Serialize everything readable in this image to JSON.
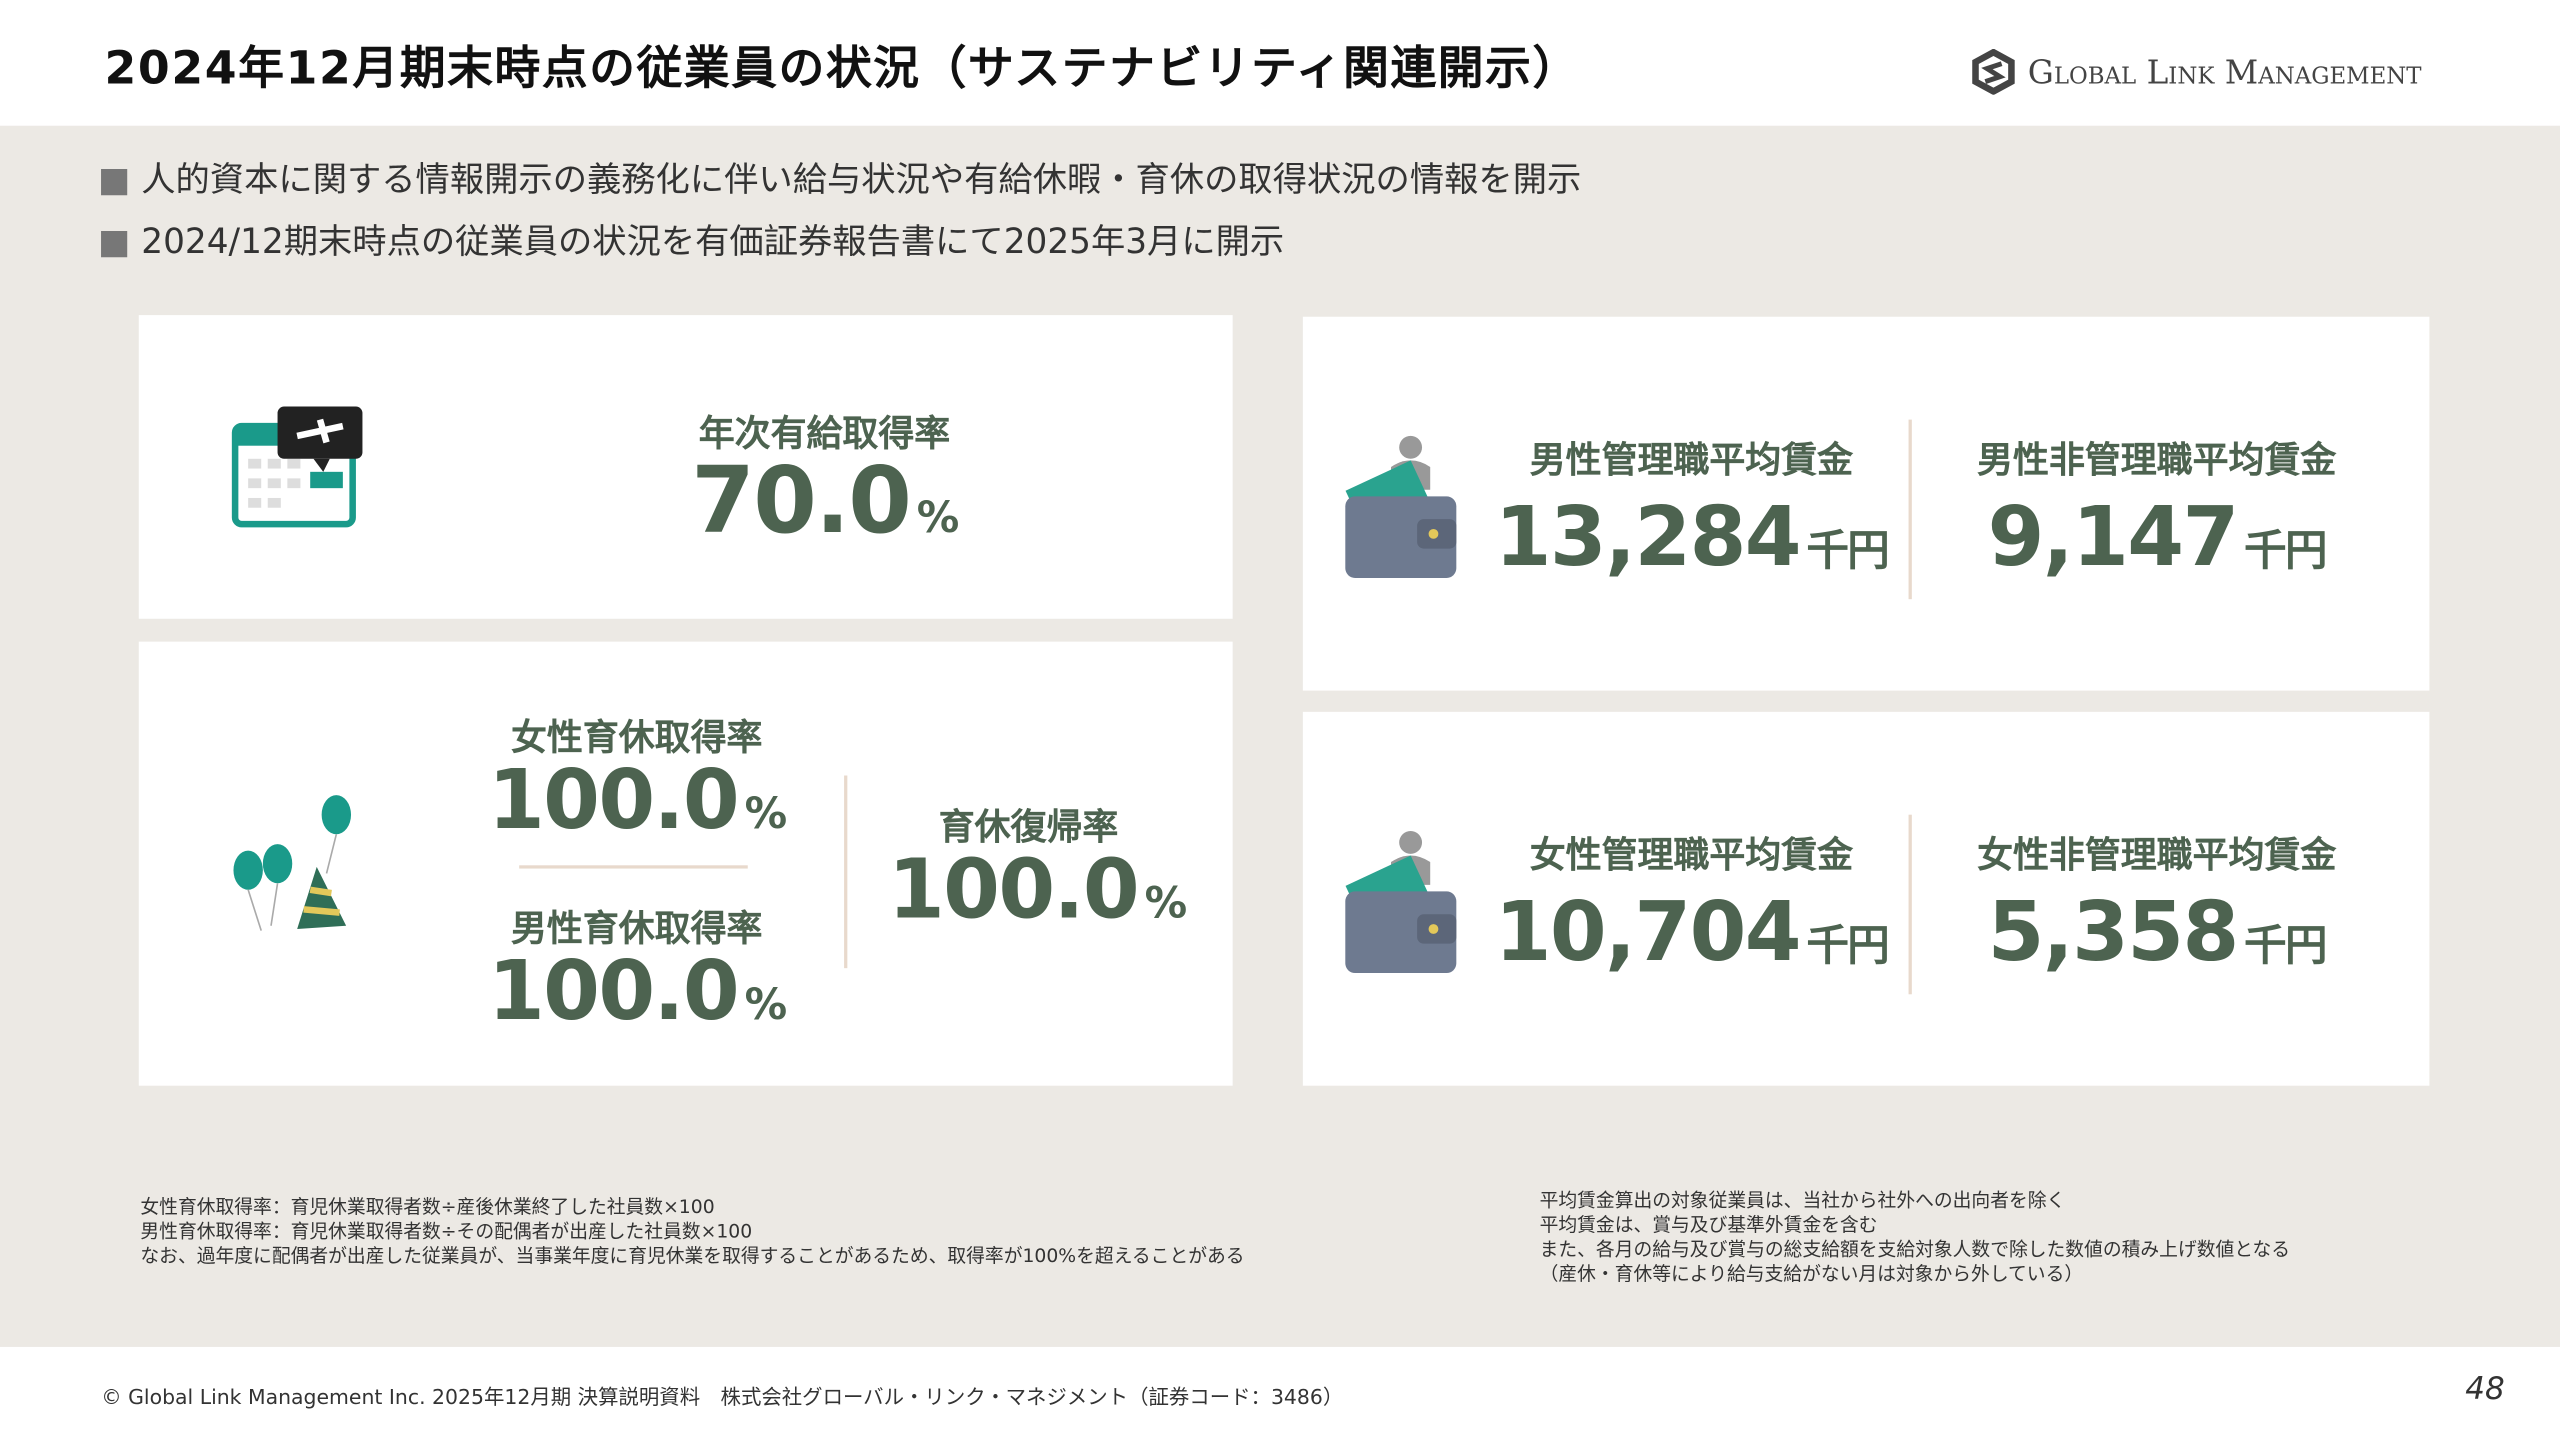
{
  "header": {
    "title": "2024年12月期末時点の従業員の状況（サステナビリティ関連開示）",
    "logo": "Global Link Management"
  },
  "bullets": [
    "人的資本に関する情報開示の義務化に伴い給与状況や有給休暇・育休の取得状況の情報を開示",
    "2024/12期末時点の従業員の状況を有価証券報告書にて2025年3月に開示"
  ],
  "paid_leave": {
    "label": "年次有給取得率",
    "value": "70.0",
    "unit": "%"
  },
  "parental_leave": {
    "female": {
      "label": "女性育休取得率",
      "value": "100.0",
      "unit": "%"
    },
    "male": {
      "label": "男性育休取得率",
      "value": "100.0",
      "unit": "%"
    },
    "return": {
      "label": "育休復帰率",
      "value": "100.0",
      "unit": "%"
    }
  },
  "male_wage": [
    {
      "label": "男性管理職平均賃金",
      "value": "13,284",
      "unit": "千円"
    },
    {
      "label": "男性非管理職平均賃金",
      "value": "9,147",
      "unit": "千円"
    }
  ],
  "female_wage": [
    {
      "label": "女性管理職平均賃金",
      "value": "10,704",
      "unit": "千円"
    },
    {
      "label": "女性非管理職平均賃金",
      "value": "5,358",
      "unit": "千円"
    }
  ],
  "notes_left": [
    "女性育休取得率：育児休業取得者数÷産後休業終了した社員数×100",
    "男性育休取得率：育児休業取得者数÷その配偶者が出産した社員数×100",
    "なお、過年度に配偶者が出産した従業員が、当事業年度に育児休業を取得することがあるため、取得率が100%を超えることがある"
  ],
  "notes_right": [
    "平均賃金算出の対象従業員は、当社から社外への出向者を除く",
    "平均賃金は、賞与及び基準外賃金を含む",
    "また、各月の給与及び賞与の総支給額を支給対象人数で除した数値の積み上げ数値となる",
    "（産休・育休等により給与支給がない月は対象から外している）"
  ],
  "footer": {
    "copyright": "© Global Link Management Inc. 2025年12月期 決算説明資料　株式会社グローバル・リンク・マネジメント（証券コード：3486）",
    "page": "48"
  }
}
